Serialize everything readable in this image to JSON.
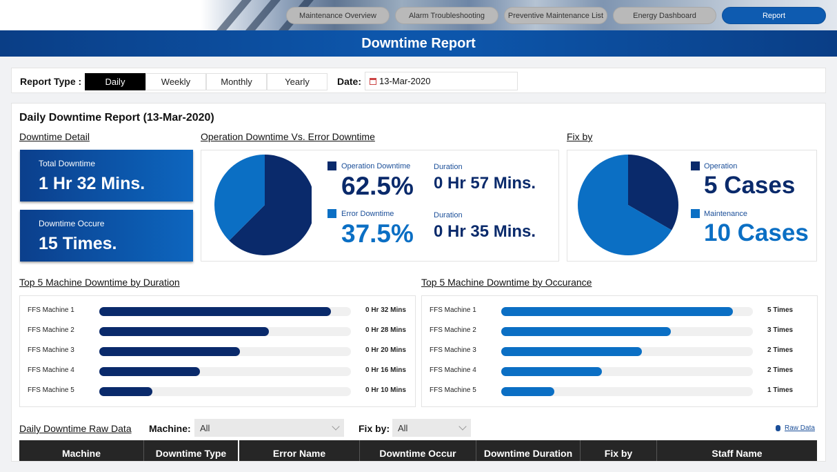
{
  "nav": {
    "items": [
      {
        "label": "Maintenance Overview",
        "active": false
      },
      {
        "label": "Alarm Troubleshooting",
        "active": false
      },
      {
        "label": "Preventive Maintenance List",
        "active": false
      },
      {
        "label": "Energy Dashboard",
        "active": false
      },
      {
        "label": "Report",
        "active": true
      }
    ]
  },
  "title": "Downtime Report",
  "filters": {
    "report_type_label": "Report Type :",
    "types": [
      "Daily",
      "Weekly",
      "Monthly",
      "Yearly"
    ],
    "selected": "Daily",
    "date_label": "Date:",
    "date_value": "13-Mar-2020"
  },
  "report": {
    "heading": "Daily Downtime Report (13-Mar-2020)",
    "detail_title": "Downtime Detail",
    "total_label": "Total Downtime",
    "total_value": "1 Hr 32 Mins.",
    "occur_label": "Downtime Occure",
    "occur_value": "15 Times.",
    "op_vs_err_title": "Operation Downtime Vs. Error Downtime",
    "op_label": "Operation Downtime",
    "op_pct": "62.5%",
    "op_duration_label": "Duration",
    "op_duration": "0 Hr 57 Mins.",
    "err_label": "Error Downtime",
    "err_pct": "37.5%",
    "err_duration_label": "Duration",
    "err_duration": "0 Hr 35 Mins.",
    "fixby_title": "Fix by",
    "fix_op_label": "Operation",
    "fix_op_value": "5 Cases",
    "fix_mt_label": "Maintenance",
    "fix_mt_value": "10 Cases",
    "top_duration_title": "Top 5 Machine Downtime by Duration",
    "top_occur_title": "Top 5 Machine Downtime by Occurance",
    "raw_title": "Daily Downtime  Raw Data",
    "machine_label": "Machine:",
    "machine_value": "All",
    "fixby_label": "Fix by:",
    "fixby_value": "All",
    "raw_link": "Raw Data"
  },
  "colors": {
    "navy": "#0a2a6b",
    "blue": "#0b6fc4",
    "accent": "#0e5bb0"
  },
  "chart_data": [
    {
      "type": "pie",
      "categories": [
        "Operation Downtime",
        "Error Downtime"
      ],
      "values": [
        62.5,
        37.5
      ],
      "colors": [
        "#0a2a6b",
        "#0b6fc4"
      ]
    },
    {
      "type": "pie",
      "categories": [
        "Operation",
        "Maintenance"
      ],
      "values": [
        5,
        10
      ],
      "colors": [
        "#0a2a6b",
        "#0b6fc4"
      ]
    },
    {
      "type": "bar",
      "title": "Top 5 Machine Downtime by Duration",
      "categories": [
        "FFS Machine 1",
        "FFS Machine 2",
        "FFS Machine 3",
        "FFS Machine 4",
        "FFS Machine 5"
      ],
      "values": [
        32,
        28,
        20,
        16,
        10
      ],
      "value_labels": [
        "0 Hr 32 Mins",
        "0 Hr 28 Mins",
        "0 Hr 20 Mins",
        "0 Hr 16 Mins",
        "0 Hr 10 Mins"
      ],
      "fill_fractions": [
        0.92,
        0.675,
        0.56,
        0.4,
        0.21
      ],
      "color": "#0a2a6b"
    },
    {
      "type": "bar",
      "title": "Top 5 Machine Downtime by Occurance",
      "categories": [
        "FFS Machine 1",
        "FFS Machine 2",
        "FFS Machine 3",
        "FFS Machine 4",
        "FFS Machine 5"
      ],
      "values": [
        5,
        3,
        2,
        2,
        1
      ],
      "value_labels": [
        "5 Times",
        "3 Times",
        "2 Times",
        "2 Times",
        "1 Times"
      ],
      "fill_fractions": [
        0.92,
        0.675,
        0.56,
        0.4,
        0.21
      ],
      "color": "#0b6fc4"
    }
  ],
  "table": {
    "headers": [
      "Machine",
      "Downtime Type",
      "Error Name",
      "Downtime Occur",
      "Downtime Duration",
      "Fix by",
      "Staff Name"
    ]
  }
}
